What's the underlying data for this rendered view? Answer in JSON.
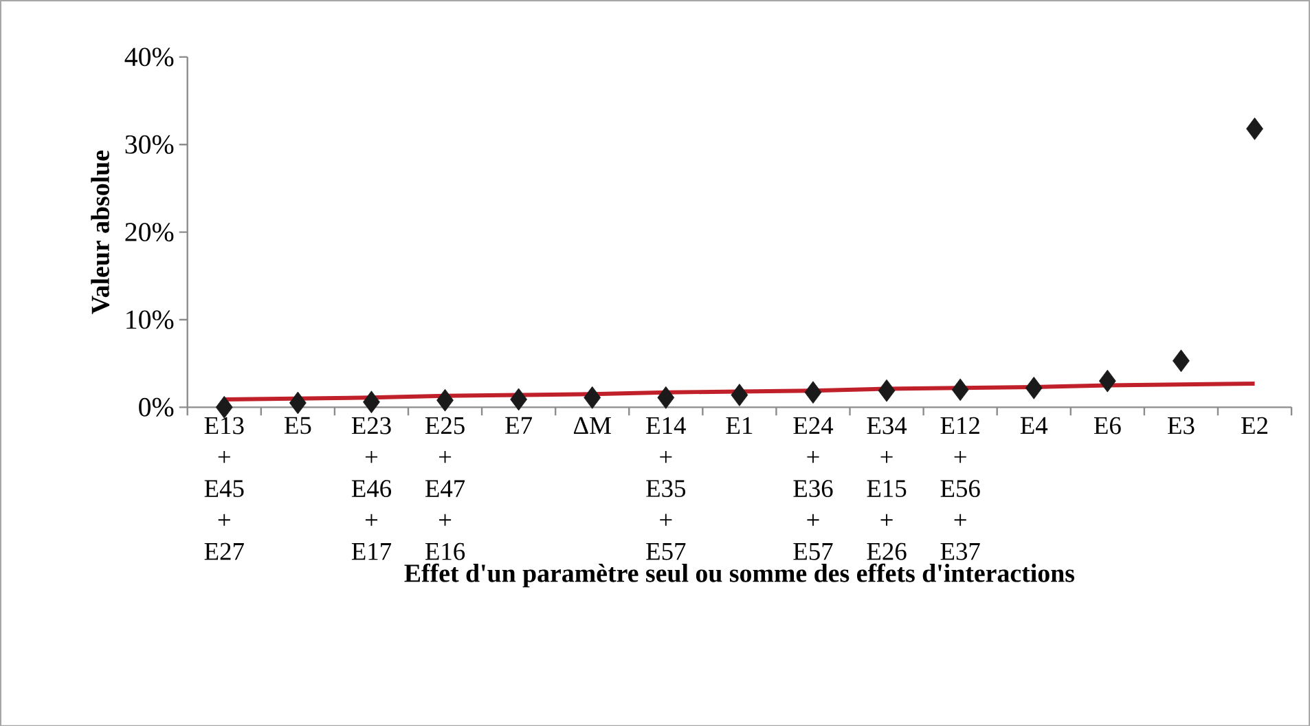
{
  "chart_data": {
    "type": "scatter",
    "xlabel": "Effet d'un paramètre seul ou somme des effets d'interactions",
    "ylabel": "Valeur  absolue",
    "categories": [
      "E13 + E45 + E27",
      "E5",
      "E23 + E46 + E17",
      "E25 + E47 + E16",
      "E7",
      "ΔM",
      "E14 + E35 + E57",
      "E1",
      "E24 + E36 + E57",
      "E34 + E15 + E26",
      "E12 + E56 + E37",
      "E4",
      "E6",
      "E3",
      "E2"
    ],
    "series": [
      {
        "color": "#1a1a1a",
        "marker": "diamond",
        "values": [
          0,
          0.5,
          0.6,
          0.8,
          0.9,
          1.1,
          1.1,
          1.4,
          1.7,
          1.9,
          2.0,
          2.2,
          3.0,
          5.3,
          31.8
        ]
      },
      {
        "type": "line",
        "color": "#c0202a",
        "values": [
          0.9,
          1.0,
          1.1,
          1.3,
          1.4,
          1.5,
          1.7,
          1.8,
          1.9,
          2.1,
          2.2,
          2.3,
          2.5,
          2.6,
          2.7
        ]
      }
    ],
    "ylim": [
      0,
      40
    ],
    "yticks": [
      {
        "value": 0,
        "label": "0%"
      },
      {
        "value": 10,
        "label": "10%"
      },
      {
        "value": 20,
        "label": "20%"
      },
      {
        "value": 30,
        "label": "30%"
      },
      {
        "value": 40,
        "label": "40%"
      }
    ]
  }
}
